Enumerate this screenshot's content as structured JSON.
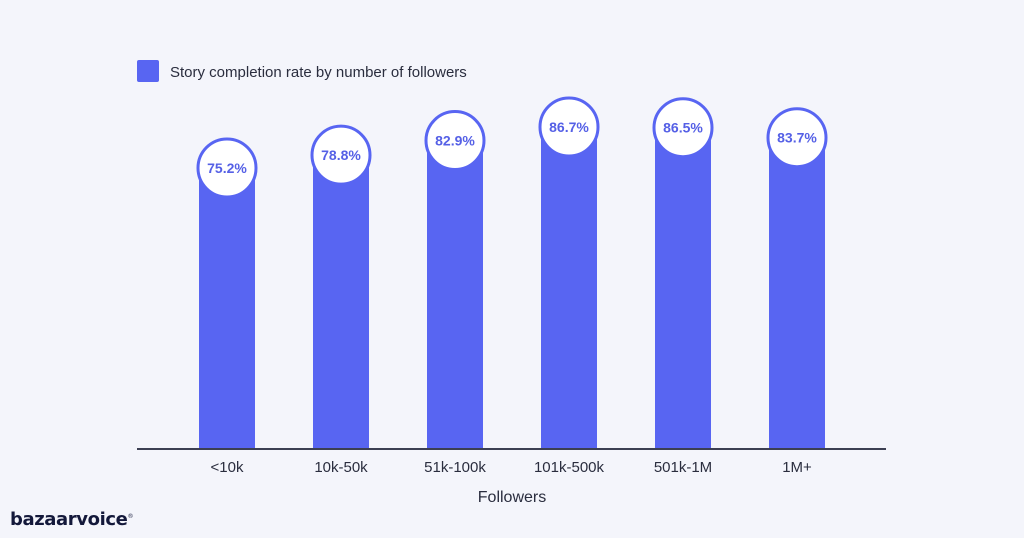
{
  "colors": {
    "background": "#f4f5fb",
    "bar": "#5865f2",
    "label_text": "#5560e6",
    "axis": "#3c3f52",
    "text": "#2a2d3e"
  },
  "brand": {
    "logo_text": "bazaarvoice",
    "trademark": "®"
  },
  "chart_data": {
    "type": "bar",
    "legend": {
      "label": "Story completion rate by number of followers",
      "placement": "top-left"
    },
    "xlabel": "Followers",
    "ylabel": "",
    "categories": [
      "<10k",
      "10k-50k",
      "51k-100k",
      "101k-500k",
      "501k-1M",
      "1M+"
    ],
    "series": [
      {
        "name": "Story completion rate by number of followers",
        "values": [
          75.2,
          78.8,
          82.9,
          86.7,
          86.5,
          83.7
        ]
      }
    ],
    "data_labels": [
      "75.2%",
      "78.8%",
      "82.9%",
      "86.7%",
      "86.5%",
      "83.7%"
    ],
    "ylim": [
      0,
      100
    ],
    "grid": false
  }
}
